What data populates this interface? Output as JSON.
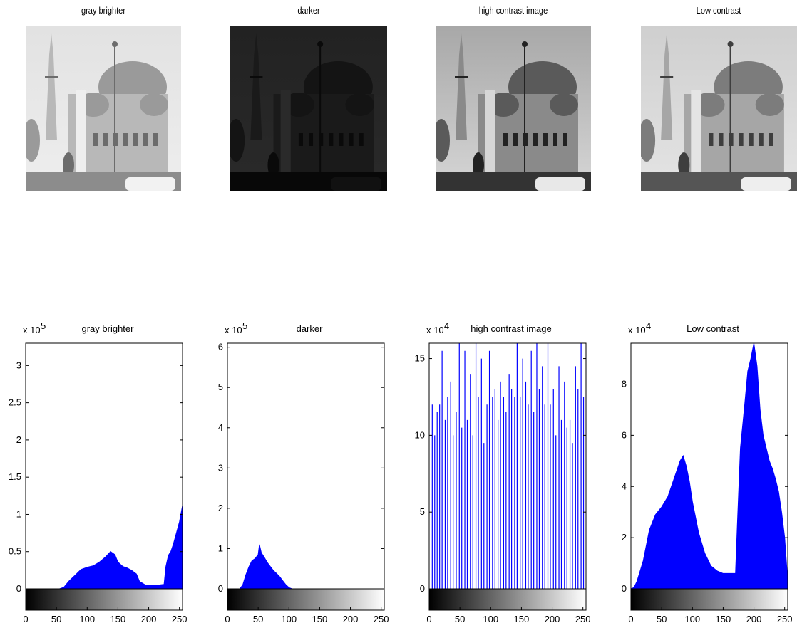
{
  "images": [
    {
      "title": "gray brighter",
      "tone": "bright"
    },
    {
      "title": "darker",
      "tone": "dark"
    },
    {
      "title": "high contrast image",
      "tone": "high"
    },
    {
      "title": "Low contrast",
      "tone": "low"
    }
  ],
  "colors": {
    "bar": "#0000ff",
    "axis": "#000000",
    "background": "#ffffff"
  },
  "chart_data": [
    {
      "type": "area",
      "title": "gray brighter",
      "exponent_label": "x 10",
      "exponent": "5",
      "xlim": [
        0,
        255
      ],
      "ylim": [
        0,
        3.3
      ],
      "xticks": [
        "0",
        "50",
        "100",
        "150",
        "200",
        "250"
      ],
      "yticks": [
        "0",
        "0.5",
        "1",
        "1.5",
        "2",
        "2.5",
        "3"
      ],
      "x": [
        0,
        55,
        62,
        70,
        80,
        90,
        100,
        110,
        120,
        130,
        138,
        145,
        150,
        158,
        165,
        172,
        180,
        185,
        195,
        205,
        215,
        225,
        228,
        232,
        236,
        240,
        245,
        250,
        255
      ],
      "values": [
        0,
        0,
        0.02,
        0.1,
        0.18,
        0.26,
        0.29,
        0.31,
        0.36,
        0.43,
        0.5,
        0.46,
        0.36,
        0.3,
        0.28,
        0.25,
        0.2,
        0.1,
        0.05,
        0.05,
        0.05,
        0.06,
        0.3,
        0.45,
        0.5,
        0.6,
        0.75,
        0.9,
        1.12
      ]
    },
    {
      "type": "area",
      "title": "darker",
      "exponent_label": "x 10",
      "exponent": "5",
      "xlim": [
        0,
        255
      ],
      "ylim": [
        0,
        6.1
      ],
      "xticks": [
        "0",
        "50",
        "100",
        "150",
        "200",
        "250"
      ],
      "yticks": [
        "0",
        "1",
        "2",
        "3",
        "4",
        "5",
        "6"
      ],
      "x": [
        0,
        20,
        25,
        30,
        35,
        40,
        45,
        50,
        52,
        55,
        60,
        65,
        70,
        75,
        80,
        85,
        90,
        95,
        100,
        105,
        255
      ],
      "values": [
        0,
        0,
        0.1,
        0.35,
        0.55,
        0.7,
        0.75,
        0.85,
        1.1,
        0.9,
        0.78,
        0.65,
        0.55,
        0.45,
        0.38,
        0.3,
        0.2,
        0.1,
        0.03,
        0,
        0
      ]
    },
    {
      "type": "bar",
      "title": "high contrast image",
      "exponent_label": "x 10",
      "exponent": "4",
      "xlim": [
        0,
        255
      ],
      "ylim": [
        0,
        16
      ],
      "xticks": [
        "0",
        "50",
        "100",
        "150",
        "200",
        "250"
      ],
      "yticks": [
        "0",
        "5",
        "10",
        "15"
      ],
      "x": [
        5,
        9,
        13,
        17,
        21,
        26,
        30,
        35,
        39,
        44,
        49,
        53,
        58,
        62,
        67,
        71,
        76,
        80,
        85,
        89,
        94,
        98,
        103,
        107,
        112,
        116,
        121,
        125,
        130,
        134,
        139,
        143,
        148,
        152,
        157,
        161,
        166,
        170,
        175,
        179,
        184,
        188,
        193,
        197,
        202,
        206,
        211,
        215,
        220,
        224,
        229,
        233,
        238,
        242,
        247,
        251
      ],
      "values": [
        12,
        10,
        11.5,
        12,
        15.5,
        11,
        12.5,
        13.5,
        10,
        11.5,
        16,
        10.5,
        15.5,
        11,
        14,
        10,
        16,
        12.5,
        15,
        9.5,
        12,
        15.5,
        12.5,
        13,
        11,
        13.5,
        12.5,
        11.5,
        14,
        13,
        12.5,
        16,
        12.5,
        15,
        13.5,
        12,
        15.5,
        11.5,
        16,
        13,
        14.5,
        12,
        16,
        12,
        13,
        10,
        14.5,
        11,
        13.5,
        10.5,
        11,
        9.5,
        14.5,
        13,
        16,
        12.5
      ]
    },
    {
      "type": "area",
      "title": "Low contrast",
      "exponent_label": "x 10",
      "exponent": "4",
      "xlim": [
        0,
        255
      ],
      "ylim": [
        0,
        9.6
      ],
      "xticks": [
        "0",
        "50",
        "100",
        "150",
        "200",
        "250"
      ],
      "yticks": [
        "0",
        "2",
        "4",
        "6",
        "8"
      ],
      "x": [
        0,
        5,
        10,
        20,
        30,
        40,
        50,
        60,
        70,
        80,
        85,
        90,
        95,
        100,
        110,
        120,
        130,
        140,
        150,
        160,
        170,
        173,
        178,
        185,
        190,
        195,
        200,
        205,
        210,
        215,
        220,
        225,
        230,
        235,
        240,
        245,
        250,
        255
      ],
      "values": [
        0,
        0.05,
        0.3,
        1.1,
        2.3,
        2.9,
        3.2,
        3.6,
        4.3,
        5.0,
        5.2,
        4.8,
        4.2,
        3.4,
        2.2,
        1.4,
        0.9,
        0.7,
        0.6,
        0.6,
        0.6,
        2.5,
        5.5,
        7.2,
        8.5,
        9.0,
        9.6,
        8.7,
        7.0,
        6.0,
        5.5,
        5.0,
        4.7,
        4.3,
        3.8,
        3.0,
        2.0,
        0.3
      ]
    }
  ]
}
